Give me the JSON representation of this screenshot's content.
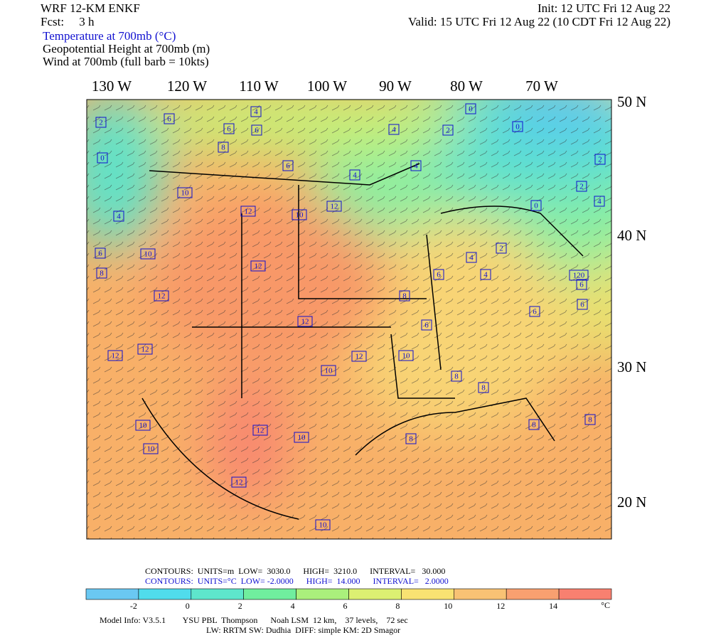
{
  "header": {
    "model": "WRF 12-KM ENKF",
    "forecast": "Fcst:     3 h",
    "init": "Init: 12 UTC Fri 12 Aug 22",
    "valid": "Valid: 15 UTC Fri 12 Aug 22 (10 CDT Fri 12 Aug 22)",
    "fields": [
      "Temperature at 700mb (°C)",
      "Geopotential Height at 700mb (m)",
      "Wind at 700mb (full barb = 10kts)"
    ]
  },
  "map": {
    "longitudes": [
      "130 W",
      "120 W",
      "110 W",
      "100 W",
      "90 W",
      "80 W",
      "70 W"
    ],
    "latitudes": [
      "50 N",
      "40 N",
      "30 N",
      "20 N"
    ],
    "contour_labels": [
      "2",
      "0",
      "6",
      "4",
      "6",
      "6",
      "8",
      "4",
      "0",
      "0",
      "2",
      "6",
      "4",
      "4",
      "2",
      "2",
      "4",
      "10",
      "12",
      "10",
      "12",
      "0",
      "4",
      "6",
      "10",
      "8",
      "12",
      "4",
      "2",
      "6",
      "4",
      "120",
      "12",
      "8",
      "6",
      "6",
      "6",
      "12",
      "6",
      "12",
      "12",
      "12",
      "10",
      "10",
      "8",
      "8",
      "10",
      "10",
      "12",
      "10",
      "8",
      "8",
      "8",
      "12",
      "10"
    ]
  },
  "contours": {
    "height": "CONTOURS:  UNITS=m  LOW=  3030.0      HIGH=  3210.0      INTERVAL=   30.000",
    "temperature": "CONTOURS:  UNITS=°C  LOW= -2.0000      HIGH=  14.000      INTERVAL=   2.0000"
  },
  "colorbar": {
    "colors": [
      "#6ac8f2",
      "#50dcec",
      "#5ee6cc",
      "#70ee9e",
      "#aaf07c",
      "#dcf072",
      "#f8e272",
      "#f8c274",
      "#f8a070",
      "#f88070"
    ],
    "ticks": [
      "-2",
      "0",
      "2",
      "4",
      "6",
      "8",
      "10",
      "12",
      "14"
    ],
    "unit": "°C"
  },
  "footer": {
    "model_info": "Model Info: V3.5.1        YSU PBL  Thompson      Noah LSM  12 km,    37 levels,    72 sec",
    "physics": "LW: RRTM SW: Dudhia  DIFF: simple KM: 2D Smagor"
  }
}
